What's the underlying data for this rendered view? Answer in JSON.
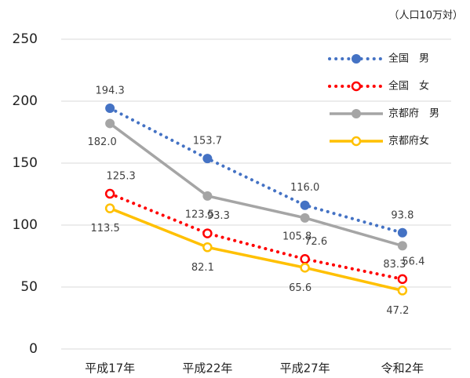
{
  "chart_data": {
    "type": "line",
    "unit_label": "（人口10万対）",
    "categories": [
      "平成17年",
      "平成22年",
      "平成27年",
      "令和2年"
    ],
    "ylim": [
      0,
      250
    ],
    "yticks": [
      0,
      50,
      100,
      150,
      200,
      250
    ],
    "grid": true,
    "legend": "upper right",
    "series": [
      {
        "name": "全国　男",
        "color": "#4472c4",
        "style": "dotted",
        "marker": "filled",
        "values": [
          194.3,
          153.7,
          116.0,
          93.8
        ],
        "value_labels": [
          "194.3",
          "153.7",
          "116.0",
          "93.8"
        ]
      },
      {
        "name": "全国　女",
        "color": "#ff0000",
        "style": "dotted",
        "marker": "open",
        "values": [
          125.3,
          93.3,
          72.6,
          56.4
        ],
        "value_labels": [
          "125.3",
          "93.3",
          "72.6",
          "56.4"
        ]
      },
      {
        "name": "京都府　男",
        "color": "#a5a5a5",
        "style": "solid",
        "marker": "filled",
        "values": [
          182.0,
          123.5,
          105.8,
          83.3
        ],
        "value_labels": [
          "182.0",
          "123.5",
          "105.8",
          "83.3"
        ]
      },
      {
        "name": "京都府女",
        "color": "#ffc000",
        "style": "solid",
        "marker": "open",
        "values": [
          113.5,
          82.1,
          65.6,
          47.2
        ],
        "value_labels": [
          "113.5",
          "82.1",
          "65.6",
          "47.2"
        ]
      }
    ]
  }
}
